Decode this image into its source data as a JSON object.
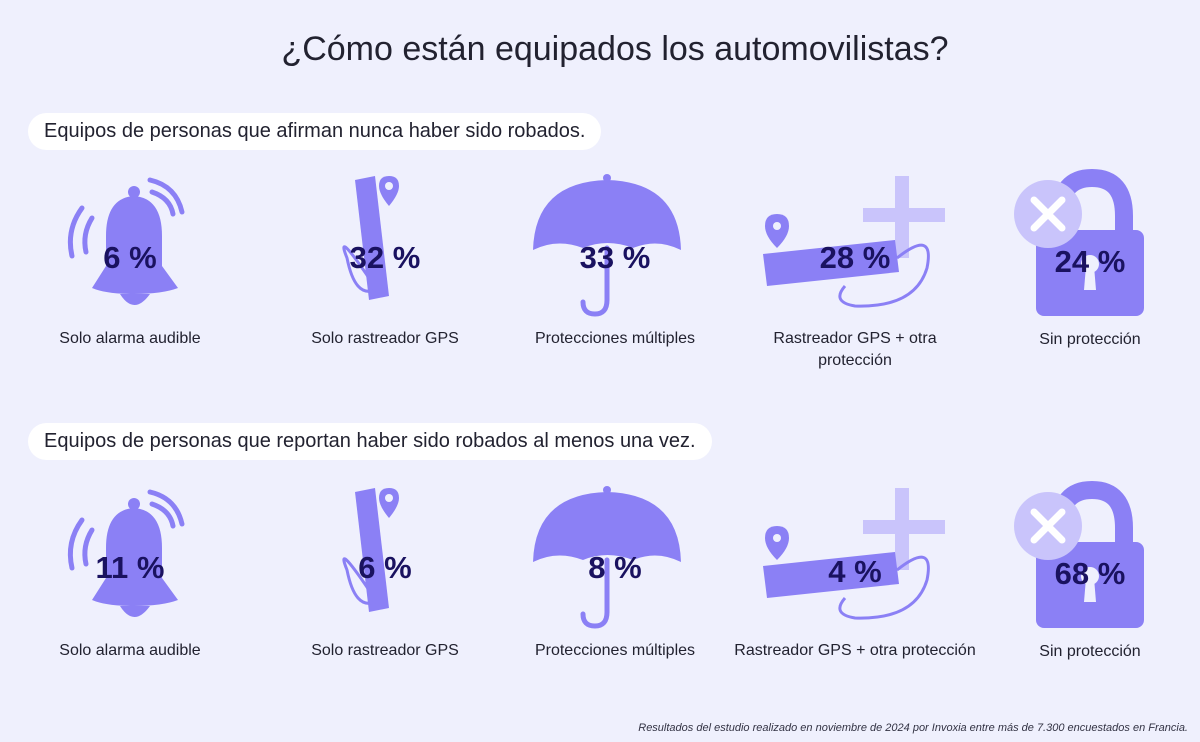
{
  "title": "¿Cómo están equipados los automovilistas?",
  "section1": {
    "heading": "Equipos de personas que afirman nunca haber sido robados.",
    "items": [
      {
        "icon": "bell-icon",
        "value": "6 %",
        "label": "Solo alarma audible"
      },
      {
        "icon": "gps-tracker-icon",
        "value": "32 %",
        "label": "Solo rastreador GPS"
      },
      {
        "icon": "umbrella-icon",
        "value": "33 %",
        "label": "Protecciones múltiples"
      },
      {
        "icon": "gps-plus-icon",
        "value": "28 %",
        "label": "Rastreador GPS + otra protección"
      },
      {
        "icon": "padlock-x-icon",
        "value": "24 %",
        "label": "Sin protección"
      }
    ]
  },
  "section2": {
    "heading": "Equipos de personas que reportan haber sido robados al menos una vez.",
    "items": [
      {
        "icon": "bell-icon",
        "value": "11 %",
        "label": "Solo alarma audible"
      },
      {
        "icon": "gps-tracker-icon",
        "value": "6 %",
        "label": "Solo rastreador GPS"
      },
      {
        "icon": "umbrella-icon",
        "value": "8 %",
        "label": "Protecciones múltiples"
      },
      {
        "icon": "gps-plus-icon",
        "value": "4 %",
        "label": "Rastreador GPS + otra protección"
      },
      {
        "icon": "padlock-x-icon",
        "value": "68 %",
        "label": "Sin protección"
      }
    ]
  },
  "footnote": "Resultados del estudio realizado en noviembre de 2024 por Invoxia entre más de 7.300 encuestados en Francia.",
  "colors": {
    "background": "#eff0fd",
    "icon": "#8b80f5",
    "icon_light": "#c9c4fb",
    "value": "#1a1260"
  }
}
